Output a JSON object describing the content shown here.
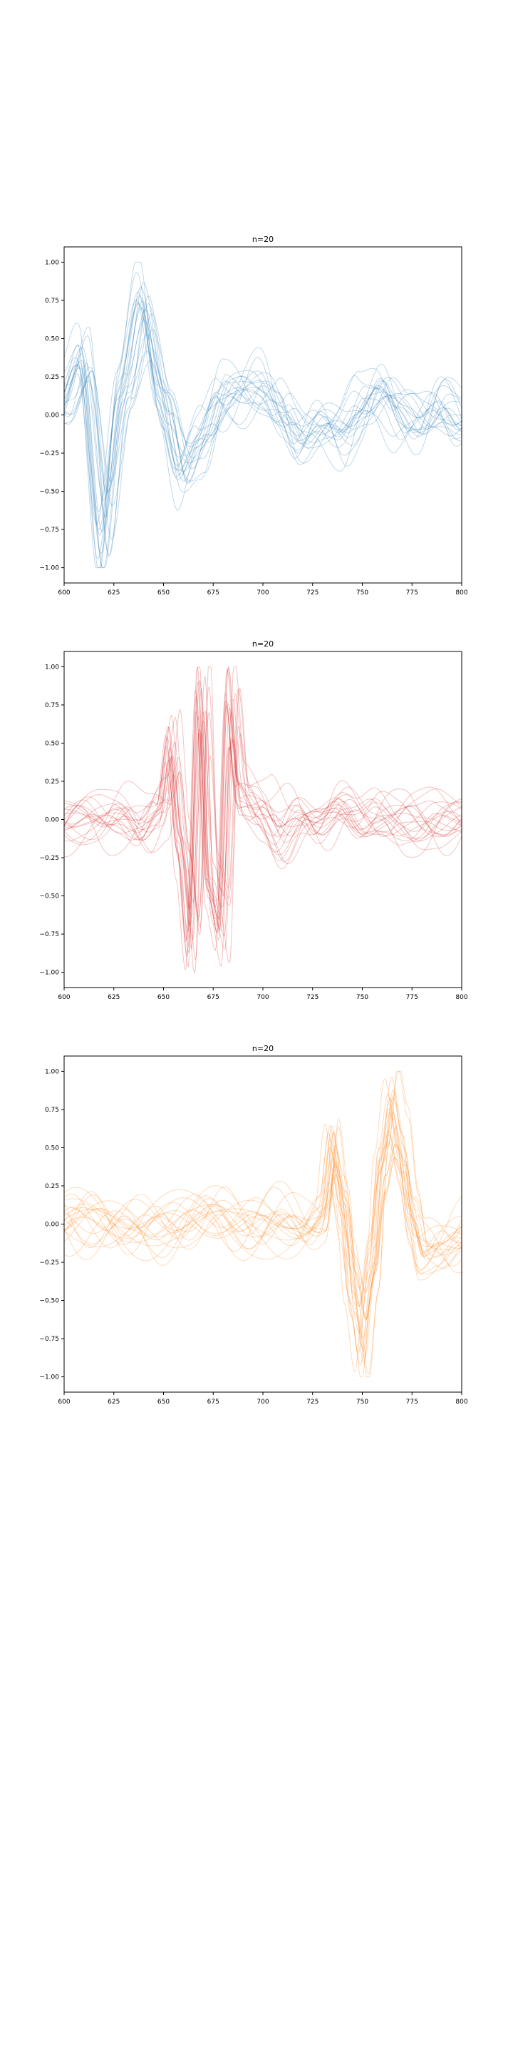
{
  "chart_data": [
    {
      "type": "line",
      "title": "n=20",
      "xlabel": "",
      "ylabel": "",
      "xlim": [
        600,
        800
      ],
      "ylim": [
        -1.1,
        1.1
      ],
      "xticks": [
        600,
        625,
        650,
        675,
        700,
        725,
        750,
        775,
        800
      ],
      "yticks": [
        -1.0,
        -0.75,
        -0.5,
        -0.25,
        0.0,
        0.25,
        0.5,
        0.75,
        1.0
      ],
      "ytick_labels": [
        "−1.00",
        "−0.75",
        "−0.50",
        "−0.25",
        "0.00",
        "0.25",
        "0.50",
        "0.75",
        "1.00"
      ],
      "grid": false,
      "color": "#1f77b4",
      "n_series": 20,
      "x": [
        600,
        610,
        620,
        630,
        640,
        650,
        660,
        670,
        680,
        690,
        700,
        710,
        720,
        730,
        740,
        750,
        760,
        770,
        780,
        790,
        800
      ],
      "series_mean": [
        0.05,
        0.45,
        -0.95,
        0.2,
        0.85,
        0.1,
        -0.45,
        -0.2,
        0.15,
        0.2,
        0.25,
        0.05,
        -0.2,
        -0.1,
        -0.15,
        0.05,
        0.2,
        0.0,
        -0.1,
        0.05,
        -0.05
      ]
    },
    {
      "type": "line",
      "title": "n=20",
      "xlabel": "",
      "ylabel": "",
      "xlim": [
        600,
        800
      ],
      "ylim": [
        -1.1,
        1.1
      ],
      "xticks": [
        600,
        625,
        650,
        675,
        700,
        725,
        750,
        775,
        800
      ],
      "yticks": [
        -1.0,
        -0.75,
        -0.5,
        -0.25,
        0.0,
        0.25,
        0.5,
        0.75,
        1.0
      ],
      "ytick_labels": [
        "−1.00",
        "−0.75",
        "−0.50",
        "−0.25",
        "0.00",
        "0.25",
        "0.50",
        "0.75",
        "1.00"
      ],
      "grid": false,
      "color": "#d62728",
      "n_series": 20,
      "x": [
        600,
        610,
        620,
        630,
        640,
        650,
        655,
        660,
        665,
        670,
        675,
        680,
        685,
        690,
        700,
        710,
        720,
        730,
        740,
        750,
        760,
        770,
        780,
        790,
        800
      ],
      "series_mean": [
        0.0,
        0.0,
        -0.02,
        0.05,
        -0.05,
        0.1,
        0.6,
        -0.2,
        -0.95,
        0.95,
        -0.6,
        -0.9,
        0.9,
        0.2,
        0.1,
        -0.1,
        0.05,
        -0.05,
        0.05,
        -0.05,
        0.05,
        0.0,
        -0.05,
        0.0,
        0.03
      ]
    },
    {
      "type": "line",
      "title": "n=20",
      "xlabel": "",
      "ylabel": "",
      "xlim": [
        600,
        800
      ],
      "ylim": [
        -1.1,
        1.1
      ],
      "xticks": [
        600,
        625,
        650,
        675,
        700,
        725,
        750,
        775,
        800
      ],
      "yticks": [
        -1.0,
        -0.75,
        -0.5,
        -0.25,
        0.0,
        0.25,
        0.5,
        0.75,
        1.0
      ],
      "ytick_labels": [
        "−1.00",
        "−0.75",
        "−0.50",
        "−0.25",
        "0.00",
        "0.25",
        "0.50",
        "0.75",
        "1.00"
      ],
      "grid": false,
      "color": "#ff7f0e",
      "n_series": 20,
      "x": [
        600,
        620,
        640,
        660,
        680,
        700,
        720,
        730,
        735,
        740,
        745,
        750,
        755,
        760,
        765,
        770,
        775,
        780,
        790,
        800
      ],
      "series_mean": [
        0.0,
        0.0,
        0.0,
        0.0,
        0.02,
        0.05,
        0.0,
        0.1,
        0.6,
        0.1,
        -0.6,
        -1.0,
        -0.4,
        0.5,
        0.95,
        0.6,
        0.1,
        -0.2,
        -0.15,
        -0.1
      ]
    }
  ]
}
